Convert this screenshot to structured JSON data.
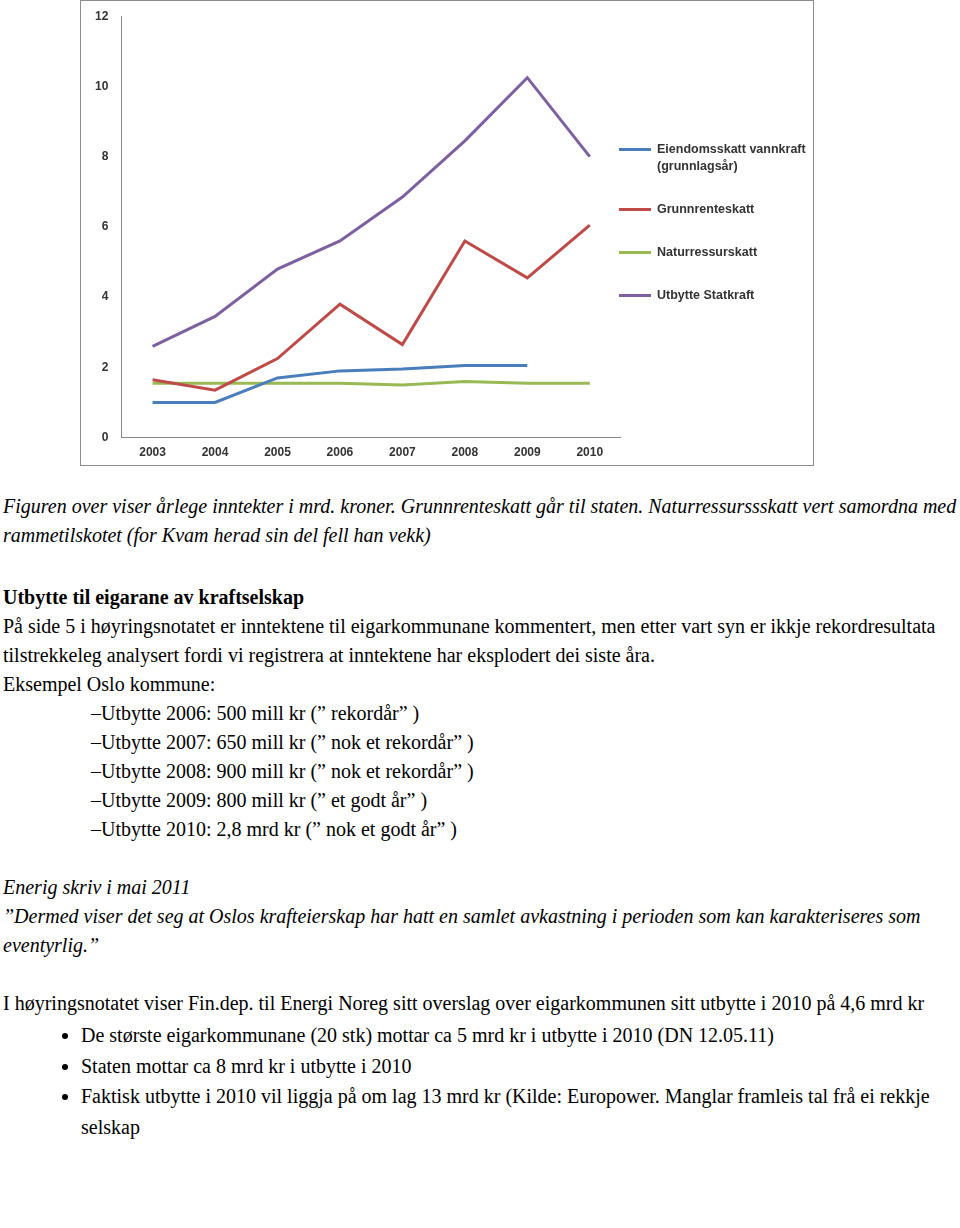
{
  "chart_data": {
    "type": "line",
    "categories": [
      "2003",
      "2004",
      "2005",
      "2006",
      "2007",
      "2008",
      "2009",
      "2010"
    ],
    "series": [
      {
        "name": "Eiendomsskatt vannkraft (grunnlagsår)",
        "color": "#4a7ebb",
        "values": [
          1.0,
          1.0,
          1.7,
          1.9,
          1.95,
          2.05,
          2.05,
          null
        ]
      },
      {
        "name": "Grunnrenteskatt",
        "color": "#be4b48",
        "values": [
          1.65,
          1.35,
          2.25,
          3.8,
          2.65,
          5.6,
          4.55,
          6.05
        ]
      },
      {
        "name": "Naturressurskatt",
        "color": "#98b954",
        "values": [
          1.55,
          1.55,
          1.55,
          1.55,
          1.5,
          1.6,
          1.55,
          1.55
        ]
      },
      {
        "name": "Utbytte Statkraft",
        "color": "#7d60a0",
        "values": [
          2.6,
          3.45,
          4.8,
          5.6,
          6.85,
          8.45,
          10.25,
          8.0
        ]
      }
    ],
    "ylim": [
      0,
      12
    ],
    "yticks": [
      0,
      2,
      4,
      6,
      8,
      10,
      12
    ],
    "grid": false,
    "legend": "right"
  },
  "document": {
    "caption": "Figuren over viser årlege inntekter i mrd. kroner. Grunnrenteskatt går til staten. Naturressurssskatt vert samordna med rammetilskotet (for Kvam herad sin del fell han vekk)",
    "heading": "Utbytte til eigarane av kraftselskap",
    "paragraph": "På side 5 i høyringsnotatet er inntektene til eigarkommunane kommentert, men etter vart syn er ikkje rekordresultata tilstrekkeleg analysert fordi vi registrera at inntektene har eksplodert dei siste åra.",
    "example_intro": "Eksempel Oslo kommune:",
    "example_items": [
      "–Utbytte 2006: 500 mill kr (” rekordår” )",
      "–Utbytte 2007: 650 mill kr (” nok et rekordår” )",
      "–Utbytte 2008: 900 mill kr (” nok et rekordår” )",
      "–Utbytte 2009: 800 mill kr (” et godt år” )",
      "–Utbytte 2010: 2,8 mrd kr (” nok et godt år” )"
    ],
    "quote_source": "Enerig skriv i mai 2011",
    "quote": "”Dermed viser det seg at Oslos krafteierskap har hatt en samlet avkastning i perioden som kan karakteriseres som eventyrlig.”",
    "note": "I høyringsnotatet viser Fin.dep. til Energi Noreg sitt overslag over eigarkommunen sitt utbytte i 2010 på 4,6 mrd kr",
    "bullets": [
      "De største eigarkommunane (20 stk) mottar ca 5 mrd kr i utbytte i 2010 (DN 12.05.11)",
      "Staten mottar ca 8 mrd kr i utbytte i 2010",
      "Faktisk utbytte i 2010 vil liggja på om lag 13 mrd kr (Kilde: Europower. Manglar framleis tal frå ei rekkje selskap"
    ]
  }
}
